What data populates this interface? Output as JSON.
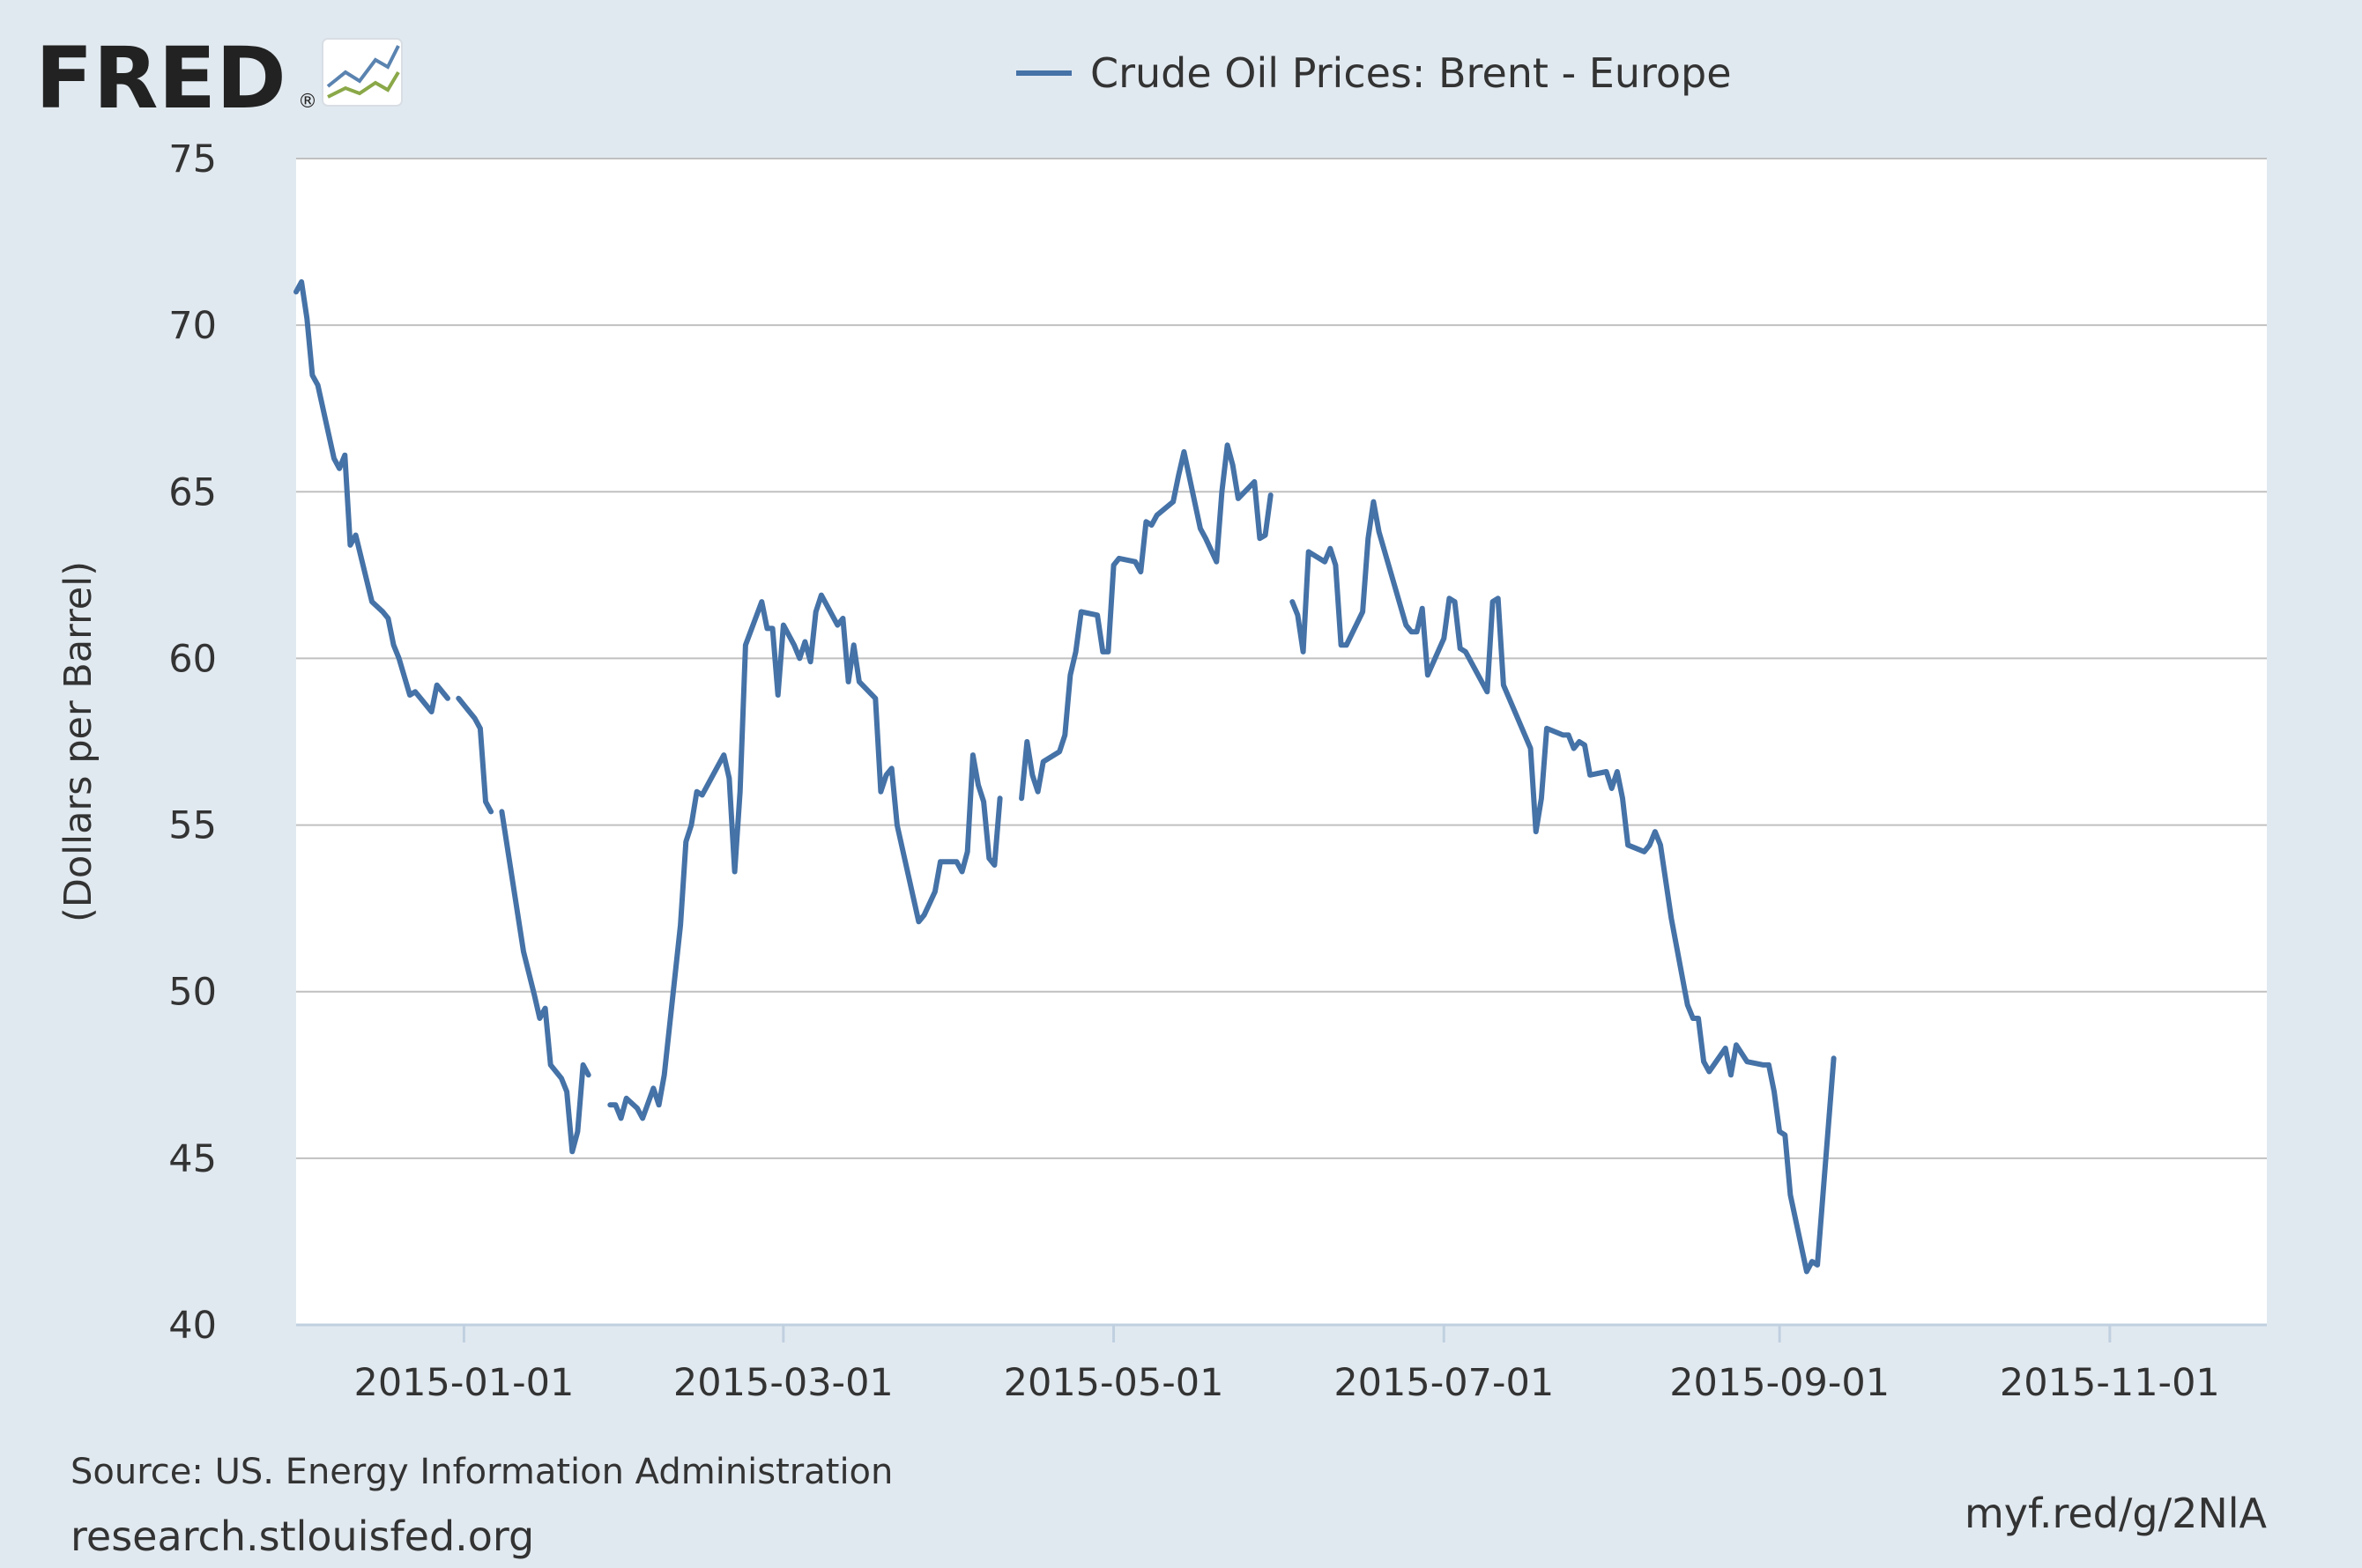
{
  "logo": {
    "text": "FRED",
    "registered": "®",
    "icon": "fred-chart-icon"
  },
  "source": "Source: US. Energy Information Administration",
  "site": "research.stlouisfed.org",
  "short_url": "myf.red/g/2NlA",
  "colors": {
    "line": "#4572a7",
    "background": "#e1e9f0",
    "plot": "#ffffff",
    "grid": "#c0c0c0",
    "axis": "#c0d0e0"
  },
  "chart_data": {
    "type": "line",
    "title": "",
    "legend": "Crude Oil Prices: Brent - Europe",
    "legend_position": "top-center",
    "xlabel": "",
    "ylabel": "(Dollars per Barrel)",
    "ylim": [
      40,
      75
    ],
    "xlim": [
      "2014-12-01",
      "2015-11-30"
    ],
    "yticks": [
      "75",
      "70",
      "65",
      "60",
      "55",
      "50",
      "45",
      "40"
    ],
    "xticks": [
      {
        "date": "2015-01-01",
        "label": "2015-01-01"
      },
      {
        "date": "2015-03-01",
        "label": "2015-03-01"
      },
      {
        "date": "2015-05-01",
        "label": "2015-05-01"
      },
      {
        "date": "2015-07-01",
        "label": "2015-07-01"
      },
      {
        "date": "2015-09-01",
        "label": "2015-09-01"
      },
      {
        "date": "2015-11-01",
        "label": "2015-11-01"
      }
    ],
    "grid": true,
    "series": [
      {
        "name": "Crude Oil Prices: Brent - Europe",
        "segments": [
          [
            [
              "2014-12-01",
              71.0
            ],
            [
              "2014-12-02",
              71.3
            ],
            [
              "2014-12-03",
              70.2
            ],
            [
              "2014-12-04",
              68.5
            ],
            [
              "2014-12-05",
              68.2
            ],
            [
              "2014-12-08",
              66.0
            ],
            [
              "2014-12-09",
              65.7
            ],
            [
              "2014-12-10",
              66.1
            ],
            [
              "2014-12-11",
              63.4
            ],
            [
              "2014-12-12",
              63.7
            ],
            [
              "2014-12-15",
              61.7
            ],
            [
              "2014-12-17",
              61.4
            ],
            [
              "2014-12-18",
              61.2
            ],
            [
              "2014-12-19",
              60.4
            ],
            [
              "2014-12-20",
              60.0
            ],
            [
              "2014-12-22",
              58.9
            ],
            [
              "2014-12-23",
              59.0
            ],
            [
              "2014-12-24",
              58.8
            ],
            [
              "2014-12-26",
              58.4
            ],
            [
              "2014-12-27",
              59.2
            ],
            [
              "2014-12-29",
              58.8
            ]
          ],
          [
            [
              "2014-12-31",
              58.8
            ],
            [
              "2015-01-02",
              58.4
            ],
            [
              "2015-01-03",
              58.2
            ],
            [
              "2015-01-04",
              57.9
            ],
            [
              "2015-01-05",
              55.7
            ],
            [
              "2015-01-06",
              55.4
            ]
          ],
          [
            [
              "2015-01-08",
              55.4
            ],
            [
              "2015-01-12",
              51.2
            ],
            [
              "2015-01-14",
              49.9
            ],
            [
              "2015-01-15",
              49.2
            ],
            [
              "2015-01-16",
              49.5
            ],
            [
              "2015-01-17",
              47.8
            ],
            [
              "2015-01-19",
              47.4
            ],
            [
              "2015-01-20",
              47.0
            ],
            [
              "2015-01-21",
              45.2
            ],
            [
              "2015-01-22",
              45.8
            ],
            [
              "2015-01-23",
              47.8
            ],
            [
              "2015-01-24",
              47.5
            ]
          ],
          [
            [
              "2015-01-28",
              46.6
            ],
            [
              "2015-01-29",
              46.6
            ],
            [
              "2015-01-30",
              46.2
            ],
            [
              "2015-01-31",
              46.8
            ],
            [
              "2015-02-02",
              46.5
            ],
            [
              "2015-02-03",
              46.2
            ],
            [
              "2015-02-05",
              47.1
            ],
            [
              "2015-02-06",
              46.6
            ],
            [
              "2015-02-07",
              47.5
            ],
            [
              "2015-02-10",
              52.0
            ],
            [
              "2015-02-11",
              54.5
            ],
            [
              "2015-02-12",
              55.0
            ],
            [
              "2015-02-13",
              56.0
            ],
            [
              "2015-02-14",
              55.9
            ],
            [
              "2015-02-18",
              57.1
            ],
            [
              "2015-02-19",
              56.4
            ],
            [
              "2015-02-20",
              53.6
            ],
            [
              "2015-02-21",
              56.0
            ],
            [
              "2015-02-22",
              60.4
            ],
            [
              "2015-02-25",
              61.7
            ],
            [
              "2015-02-26",
              60.9
            ],
            [
              "2015-02-27",
              60.9
            ],
            [
              "2015-02-28",
              58.9
            ],
            [
              "2015-03-01",
              61.0
            ],
            [
              "2015-03-03",
              60.4
            ],
            [
              "2015-03-04",
              60.0
            ],
            [
              "2015-03-05",
              60.5
            ],
            [
              "2015-03-06",
              59.9
            ],
            [
              "2015-03-07",
              61.4
            ],
            [
              "2015-03-08",
              61.9
            ],
            [
              "2015-03-11",
              61.0
            ],
            [
              "2015-03-12",
              61.2
            ],
            [
              "2015-03-13",
              59.3
            ],
            [
              "2015-03-14",
              60.4
            ],
            [
              "2015-03-15",
              59.3
            ],
            [
              "2015-03-18",
              58.8
            ],
            [
              "2015-03-19",
              56.0
            ],
            [
              "2015-03-20",
              56.5
            ],
            [
              "2015-03-21",
              56.7
            ],
            [
              "2015-03-22",
              55.0
            ],
            [
              "2015-03-26",
              52.1
            ],
            [
              "2015-03-27",
              52.3
            ],
            [
              "2015-03-29",
              53.0
            ],
            [
              "2015-03-30",
              53.9
            ],
            [
              "2015-04-02",
              53.9
            ],
            [
              "2015-04-03",
              53.6
            ],
            [
              "2015-04-04",
              54.2
            ],
            [
              "2015-04-05",
              57.1
            ],
            [
              "2015-04-06",
              56.2
            ],
            [
              "2015-04-07",
              55.7
            ],
            [
              "2015-04-08",
              54.0
            ],
            [
              "2015-04-09",
              53.8
            ],
            [
              "2015-04-10",
              55.8
            ]
          ],
          [
            [
              "2015-04-14",
              55.8
            ],
            [
              "2015-04-15",
              57.5
            ],
            [
              "2015-04-16",
              56.5
            ],
            [
              "2015-04-17",
              56.0
            ],
            [
              "2015-04-18",
              56.9
            ],
            [
              "2015-04-21",
              57.2
            ],
            [
              "2015-04-22",
              57.7
            ],
            [
              "2015-04-23",
              59.5
            ],
            [
              "2015-04-24",
              60.2
            ],
            [
              "2015-04-25",
              61.4
            ],
            [
              "2015-04-28",
              61.3
            ],
            [
              "2015-04-29",
              60.2
            ],
            [
              "2015-04-30",
              60.2
            ],
            [
              "2015-05-01",
              62.8
            ],
            [
              "2015-05-02",
              63.0
            ],
            [
              "2015-05-05",
              62.9
            ],
            [
              "2015-05-06",
              62.6
            ],
            [
              "2015-05-07",
              64.1
            ],
            [
              "2015-05-08",
              64.0
            ],
            [
              "2015-05-09",
              64.3
            ],
            [
              "2015-05-12",
              64.7
            ],
            [
              "2015-05-13",
              65.5
            ],
            [
              "2015-05-14",
              66.2
            ],
            [
              "2015-05-17",
              63.9
            ],
            [
              "2015-05-18",
              63.6
            ],
            [
              "2015-05-20",
              62.9
            ],
            [
              "2015-05-21",
              65.0
            ],
            [
              "2015-05-22",
              66.4
            ],
            [
              "2015-05-23",
              65.8
            ],
            [
              "2015-05-24",
              64.8
            ],
            [
              "2015-05-27",
              65.3
            ],
            [
              "2015-05-28",
              63.6
            ],
            [
              "2015-05-29",
              63.7
            ],
            [
              "2015-05-30",
              64.9
            ]
          ],
          [
            [
              "2015-06-03",
              61.7
            ],
            [
              "2015-06-04",
              61.3
            ],
            [
              "2015-06-05",
              60.2
            ],
            [
              "2015-06-06",
              63.2
            ],
            [
              "2015-06-09",
              62.9
            ],
            [
              "2015-06-10",
              63.3
            ],
            [
              "2015-06-11",
              62.8
            ],
            [
              "2015-06-12",
              60.4
            ],
            [
              "2015-06-13",
              60.4
            ],
            [
              "2015-06-16",
              61.4
            ],
            [
              "2015-06-17",
              63.6
            ],
            [
              "2015-06-18",
              64.7
            ],
            [
              "2015-06-19",
              63.8
            ],
            [
              "2015-06-24",
              61.0
            ],
            [
              "2015-06-25",
              60.8
            ],
            [
              "2015-06-26",
              60.8
            ],
            [
              "2015-06-27",
              61.5
            ],
            [
              "2015-06-28",
              59.5
            ],
            [
              "2015-07-01",
              60.6
            ],
            [
              "2015-07-02",
              61.8
            ],
            [
              "2015-07-03",
              61.7
            ],
            [
              "2015-07-04",
              60.3
            ],
            [
              "2015-07-05",
              60.2
            ],
            [
              "2015-07-09",
              59.0
            ],
            [
              "2015-07-10",
              61.7
            ],
            [
              "2015-07-11",
              61.8
            ],
            [
              "2015-07-12",
              59.2
            ],
            [
              "2015-07-17",
              57.3
            ],
            [
              "2015-07-18",
              54.8
            ],
            [
              "2015-07-19",
              55.8
            ],
            [
              "2015-07-20",
              57.9
            ],
            [
              "2015-07-23",
              57.7
            ],
            [
              "2015-07-24",
              57.7
            ],
            [
              "2015-07-25",
              57.3
            ],
            [
              "2015-07-26",
              57.5
            ],
            [
              "2015-07-27",
              57.4
            ],
            [
              "2015-07-28",
              56.5
            ],
            [
              "2015-07-31",
              56.6
            ],
            [
              "2015-08-01",
              56.1
            ],
            [
              "2015-08-02",
              56.6
            ],
            [
              "2015-08-03",
              55.8
            ],
            [
              "2015-08-04",
              54.4
            ],
            [
              "2015-08-07",
              54.2
            ],
            [
              "2015-08-08",
              54.4
            ],
            [
              "2015-08-09",
              54.8
            ],
            [
              "2015-08-10",
              54.4
            ],
            [
              "2015-08-12",
              52.2
            ],
            [
              "2015-08-15",
              49.6
            ],
            [
              "2015-08-16",
              49.2
            ],
            [
              "2015-08-17",
              49.2
            ],
            [
              "2015-08-18",
              47.9
            ],
            [
              "2015-08-19",
              47.6
            ],
            [
              "2015-08-22",
              48.3
            ],
            [
              "2015-08-23",
              47.5
            ],
            [
              "2015-08-24",
              48.4
            ],
            [
              "2015-08-26",
              47.9
            ],
            [
              "2015-08-29",
              47.8
            ],
            [
              "2015-08-30",
              47.8
            ],
            [
              "2015-08-31",
              47.0
            ],
            [
              "2015-09-01",
              45.8
            ],
            [
              "2015-09-02",
              45.7
            ],
            [
              "2015-09-03",
              43.9
            ],
            [
              "2015-09-06",
              41.6
            ],
            [
              "2015-09-07",
              41.9
            ],
            [
              "2015-09-08",
              41.8
            ],
            [
              "2015-09-11",
              48.0
            ]
          ]
        ],
        "note": "segments approximate the visible line; gaps appear where data is missing"
      }
    ]
  }
}
